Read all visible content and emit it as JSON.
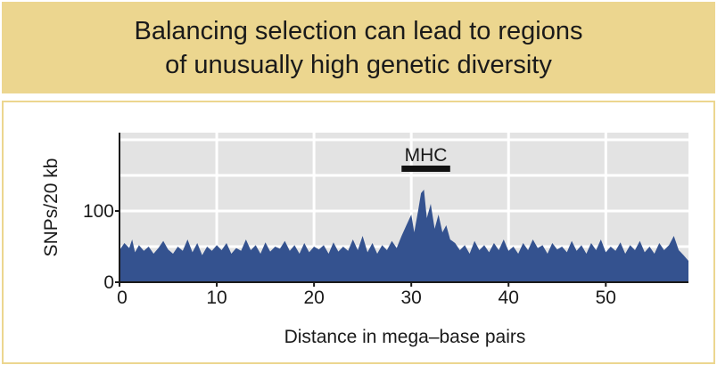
{
  "banner": {
    "line1": "Balancing selection can lead to regions",
    "line2": "of unusually high genetic diversity"
  },
  "colors": {
    "banner_bg": "#ecd68f",
    "plot_bg": "#e3e3e3",
    "series_fill": "#34528f",
    "annotation_bar": "#111111"
  },
  "chart_data": {
    "type": "area",
    "xlabel": "Distance in mega–base pairs",
    "ylabel": "SNPs/20 kb",
    "xlim": [
      0,
      58.5
    ],
    "ylim": [
      0,
      210
    ],
    "x_ticks": [
      0,
      10,
      20,
      30,
      40,
      50
    ],
    "x_tick_labels": [
      "0",
      "10",
      "20",
      "30",
      "40",
      "50"
    ],
    "y_ticks": [
      0,
      100
    ],
    "y_tick_labels": [
      "0",
      "100"
    ],
    "grid": true,
    "annotation": {
      "label": "MHC",
      "x_start": 29,
      "x_end": 34
    },
    "series": [
      {
        "values": [
          [
            0,
            45
          ],
          [
            0.5,
            55
          ],
          [
            1,
            48
          ],
          [
            1.3,
            60
          ],
          [
            1.6,
            42
          ],
          [
            2,
            52
          ],
          [
            2.5,
            44
          ],
          [
            3,
            50
          ],
          [
            3.5,
            40
          ],
          [
            4,
            48
          ],
          [
            4.5,
            58
          ],
          [
            5,
            46
          ],
          [
            5.5,
            40
          ],
          [
            6,
            50
          ],
          [
            6.5,
            44
          ],
          [
            7,
            60
          ],
          [
            7.5,
            42
          ],
          [
            8,
            55
          ],
          [
            8.5,
            38
          ],
          [
            9,
            50
          ],
          [
            9.5,
            44
          ],
          [
            10,
            52
          ],
          [
            10.5,
            45
          ],
          [
            11,
            55
          ],
          [
            11.5,
            40
          ],
          [
            12,
            48
          ],
          [
            12.5,
            44
          ],
          [
            13,
            60
          ],
          [
            13.5,
            45
          ],
          [
            14,
            52
          ],
          [
            14.5,
            40
          ],
          [
            15,
            56
          ],
          [
            15.5,
            43
          ],
          [
            16,
            50
          ],
          [
            16.5,
            47
          ],
          [
            17,
            58
          ],
          [
            17.5,
            44
          ],
          [
            18,
            52
          ],
          [
            18.5,
            40
          ],
          [
            19,
            55
          ],
          [
            19.5,
            42
          ],
          [
            20,
            50
          ],
          [
            20.5,
            46
          ],
          [
            21,
            52
          ],
          [
            21.5,
            40
          ],
          [
            22,
            56
          ],
          [
            22.5,
            43
          ],
          [
            23,
            50
          ],
          [
            23.5,
            44
          ],
          [
            24,
            60
          ],
          [
            24.5,
            45
          ],
          [
            25,
            65
          ],
          [
            25.5,
            42
          ],
          [
            26,
            55
          ],
          [
            26.5,
            40
          ],
          [
            27,
            52
          ],
          [
            27.5,
            45
          ],
          [
            28,
            58
          ],
          [
            28.5,
            48
          ],
          [
            29,
            65
          ],
          [
            29.5,
            80
          ],
          [
            30,
            95
          ],
          [
            30.3,
            70
          ],
          [
            30.7,
            100
          ],
          [
            31,
            125
          ],
          [
            31.3,
            130
          ],
          [
            31.6,
            90
          ],
          [
            32,
            110
          ],
          [
            32.4,
            75
          ],
          [
            32.8,
            95
          ],
          [
            33.2,
            70
          ],
          [
            33.6,
            80
          ],
          [
            34,
            60
          ],
          [
            34.5,
            55
          ],
          [
            35,
            45
          ],
          [
            35.5,
            52
          ],
          [
            36,
            40
          ],
          [
            36.5,
            58
          ],
          [
            37,
            45
          ],
          [
            37.5,
            52
          ],
          [
            38,
            42
          ],
          [
            38.5,
            55
          ],
          [
            39,
            45
          ],
          [
            39.5,
            60
          ],
          [
            40,
            44
          ],
          [
            40.5,
            50
          ],
          [
            41,
            40
          ],
          [
            41.5,
            55
          ],
          [
            42,
            45
          ],
          [
            42.5,
            60
          ],
          [
            43,
            48
          ],
          [
            43.5,
            52
          ],
          [
            44,
            40
          ],
          [
            44.5,
            55
          ],
          [
            45,
            46
          ],
          [
            45.5,
            50
          ],
          [
            46,
            42
          ],
          [
            46.5,
            58
          ],
          [
            47,
            44
          ],
          [
            47.5,
            52
          ],
          [
            48,
            40
          ],
          [
            48.5,
            55
          ],
          [
            49,
            45
          ],
          [
            49.5,
            60
          ],
          [
            50,
            42
          ],
          [
            50.5,
            50
          ],
          [
            51,
            44
          ],
          [
            51.5,
            56
          ],
          [
            52,
            40
          ],
          [
            52.5,
            52
          ],
          [
            53,
            45
          ],
          [
            53.5,
            58
          ],
          [
            54,
            42
          ],
          [
            54.5,
            50
          ],
          [
            55,
            40
          ],
          [
            55.5,
            55
          ],
          [
            56,
            45
          ],
          [
            56.5,
            52
          ],
          [
            57,
            65
          ],
          [
            57.5,
            45
          ],
          [
            58,
            38
          ],
          [
            58.5,
            30
          ]
        ]
      }
    ]
  }
}
